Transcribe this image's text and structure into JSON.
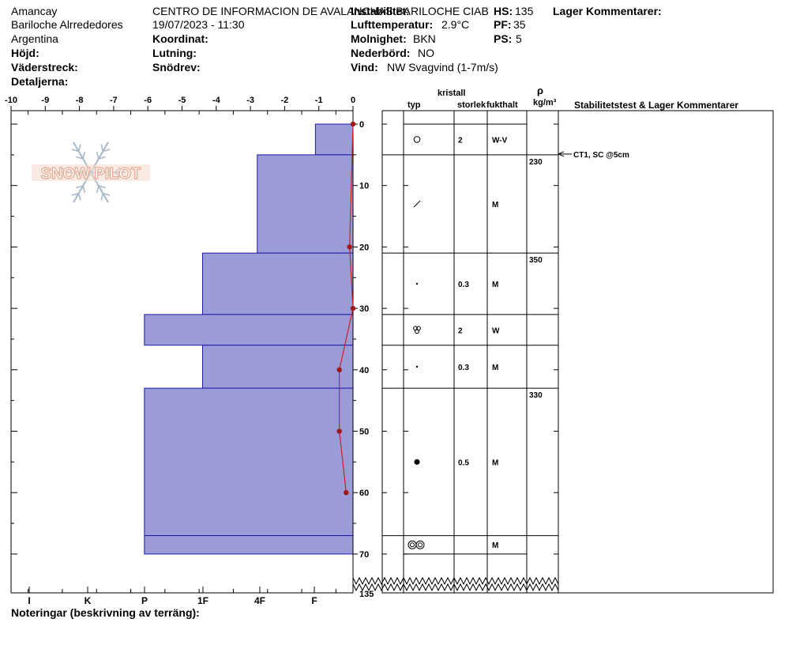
{
  "header": {
    "location": "Amancay",
    "region": "Bariloche Alrrededores",
    "country": "Argentina",
    "elevation_label": "Höjd:",
    "aspect_label": "Väderstreck:",
    "details_label": "Detaljerna:",
    "organization": "CENTRO DE INFORMACION DE AVALANCHAS BARILOCHE CIAB",
    "datetime": "19/07/2023 - 11:30",
    "coordinate_label": "Koordinat:",
    "slope_label": "Lutning:",
    "drift_label": "Snödrev:",
    "stability_label": "Instabilitet:",
    "air_temp_label": "Lufttemperatur:",
    "air_temp_value": "2.9°C",
    "sky_label": "Molnighet:",
    "sky_value": "BKN",
    "precip_label": "Nederbörd:",
    "precip_value": "NO",
    "wind_label": "Vind:",
    "wind_value": "NW Svagvind (1-7m/s)",
    "hs_label": "HS:",
    "hs_value": "135",
    "pf_label": "PF:",
    "pf_value": "35",
    "ps_label": "PS:",
    "ps_value": "5",
    "layer_comments_label": "Lager Kommentarer:"
  },
  "footer": {
    "notes_label": "Noteringar (beskrivning av terräng):"
  },
  "columns": {
    "crystal_label": "kristall",
    "type_label": "typ",
    "size_label": "storlek",
    "moisture_label": "fukthalt",
    "density_symbol": "ρ",
    "density_unit": "kg/m³",
    "stability_header": "Stabilitetstest & Lager Kommentarer"
  },
  "logo_text": "SNOW PILOT",
  "colors": {
    "hardness_fill": "#9b9bd8",
    "hardness_stroke": "#1a1aa8",
    "temp_line": "#cc2222",
    "temp_marker": "#a01818",
    "logo_outline": "#e8a890",
    "logo_flake": "#a8b8c8"
  },
  "chart_data": {
    "type": "snow-profile",
    "temperature_axis": {
      "min": -10,
      "max": 0,
      "ticks": [
        -10,
        -9,
        -8,
        -7,
        -6,
        -5,
        -4,
        -3,
        -2,
        -1,
        0
      ]
    },
    "depth_axis": {
      "min": 0,
      "max": 70,
      "ticks": [
        0,
        10,
        20,
        30,
        40,
        50,
        60,
        70
      ],
      "total_height": 135
    },
    "hardness_ticks": [
      "I",
      "K",
      "P",
      "1F",
      "4F",
      "F"
    ],
    "temperature_profile": [
      {
        "depth": 0,
        "temp": 0
      },
      {
        "depth": 20,
        "temp": -0.1
      },
      {
        "depth": 30,
        "temp": 0
      },
      {
        "depth": 40,
        "temp": -0.4
      },
      {
        "depth": 50,
        "temp": -0.4
      },
      {
        "depth": 60,
        "temp": -0.2
      }
    ],
    "layers": [
      {
        "top": 0,
        "bottom": 5,
        "hardness_index": -1.1,
        "type_icon": "rounding-icon",
        "size": "2",
        "moisture": "W-V",
        "density": ""
      },
      {
        "top": 5,
        "bottom": 21,
        "hardness_index": -2.8,
        "type_icon": "decomposing-icon",
        "size": "",
        "moisture": "M",
        "density": "230"
      },
      {
        "top": 21,
        "bottom": 31,
        "hardness_index": -4.4,
        "type_icon": "small-dot-icon",
        "size": "0.3",
        "moisture": "M",
        "density": "350"
      },
      {
        "top": 31,
        "bottom": 36,
        "hardness_index": -6.1,
        "type_icon": "melt-cluster-icon",
        "size": "2",
        "moisture": "W",
        "density": ""
      },
      {
        "top": 36,
        "bottom": 43,
        "hardness_index": -4.4,
        "type_icon": "small-dot-icon",
        "size": "0.3",
        "moisture": "M",
        "density": ""
      },
      {
        "top": 43,
        "bottom": 67,
        "hardness_index": -6.1,
        "type_icon": "rounded-grain-icon",
        "size": "0.5",
        "moisture": "M",
        "density": "330"
      },
      {
        "top": 67,
        "bottom": 70,
        "hardness_index": -6.1,
        "type_icon": "melt-forms-icon",
        "size": "",
        "moisture": "M",
        "density": ""
      }
    ],
    "stability_tests": [
      {
        "depth": 5,
        "label": "CT1, SC @5cm"
      }
    ]
  }
}
